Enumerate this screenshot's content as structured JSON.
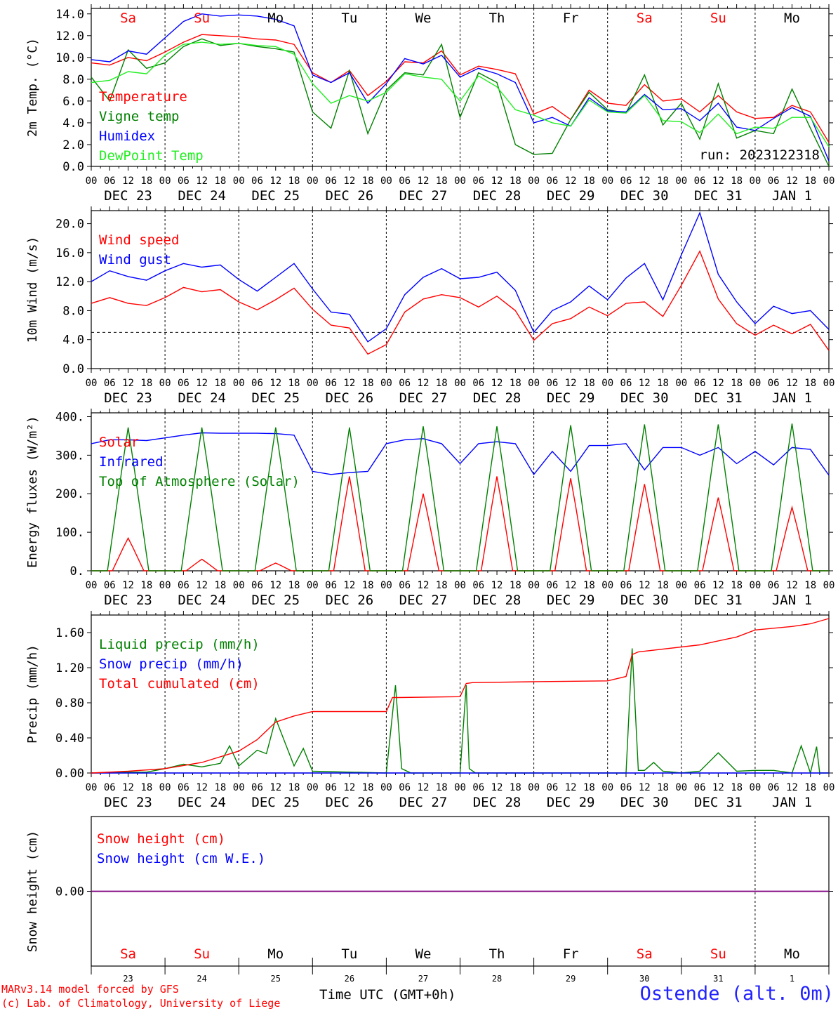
{
  "run_label": "run: 2023122318",
  "day_names": [
    "Sa",
    "Su",
    "Mo",
    "Tu",
    "We",
    "Th",
    "Fr",
    "Sa",
    "Su",
    "Mo"
  ],
  "weekend_flags": [
    true,
    true,
    false,
    false,
    false,
    false,
    false,
    true,
    true,
    false
  ],
  "date_labels": [
    "DEC 23",
    "DEC 24",
    "DEC 25",
    "DEC 26",
    "DEC 27",
    "DEC 28",
    "DEC 29",
    "DEC 30",
    "DEC 31",
    "JAN  1"
  ],
  "day_numbers": [
    "23",
    "24",
    "25",
    "26",
    "27",
    "28",
    "29",
    "30",
    "31",
    "1"
  ],
  "hour_labels": [
    "00",
    "06",
    "12",
    "18"
  ],
  "footer": {
    "credit_line1": "MARv3.14 model forced by GFS",
    "credit_line2": "(c) Lab. of Climatology, University of Liege",
    "time_axis": "Time UTC (GMT+0h)",
    "station": "Ostende (alt. 0m)"
  },
  "colors": {
    "red": "#ff0000",
    "darkgreen": "#008000",
    "blue": "#0000ff",
    "lightgreen": "#22ee22",
    "purple": "#800080"
  },
  "chart_data": [
    {
      "type": "line",
      "ylabel": "2m Temp. (°C)",
      "ylim": [
        0,
        14.5
      ],
      "yticks": [
        "0.0",
        "2.0",
        "4.0",
        "6.0",
        "8.0",
        "10.0",
        "12.0",
        "14.0"
      ],
      "ytick_values": [
        0,
        2,
        4,
        6,
        8,
        10,
        12,
        14
      ],
      "x_unit": "hours since DEC 23 00 UTC",
      "series": [
        {
          "name": "Temperature",
          "color": "red",
          "x": [
            0,
            6,
            12,
            18,
            24,
            30,
            36,
            42,
            48,
            54,
            60,
            66,
            72,
            78,
            84,
            90,
            96,
            102,
            108,
            114,
            120,
            126,
            132,
            138,
            144,
            150,
            156,
            162,
            168,
            174,
            180,
            186,
            192,
            198,
            204,
            210,
            216,
            222,
            228,
            234,
            240
          ],
          "y": [
            9.5,
            9.3,
            10.0,
            9.7,
            10.5,
            11.4,
            12.1,
            12.0,
            11.9,
            11.7,
            11.6,
            11.2,
            8.6,
            7.7,
            8.8,
            6.5,
            7.8,
            9.6,
            9.5,
            10.6,
            8.4,
            9.2,
            8.9,
            8.5,
            4.8,
            5.5,
            4.3,
            7.0,
            5.8,
            5.6,
            7.5,
            6.0,
            6.2,
            5.0,
            6.5,
            5.0,
            4.4,
            4.5,
            5.6,
            5.0,
            2.2
          ]
        },
        {
          "name": "Vigne temp",
          "color": "darkgreen",
          "x": [
            0,
            6,
            12,
            18,
            24,
            30,
            36,
            42,
            48,
            54,
            60,
            66,
            72,
            78,
            84,
            90,
            96,
            102,
            108,
            114,
            120,
            126,
            132,
            138,
            144,
            150,
            156,
            162,
            168,
            174,
            180,
            186,
            192,
            198,
            204,
            210,
            216,
            222,
            228,
            234,
            240
          ],
          "y": [
            8.2,
            6.0,
            10.7,
            9.0,
            9.5,
            11.0,
            11.7,
            11.1,
            11.3,
            11.0,
            10.8,
            10.5,
            5.0,
            3.5,
            8.8,
            3.0,
            7.0,
            8.6,
            8.4,
            11.2,
            4.5,
            8.6,
            7.7,
            2.0,
            1.1,
            1.2,
            4.3,
            6.8,
            5.2,
            4.9,
            8.4,
            3.8,
            5.8,
            2.5,
            7.6,
            2.6,
            3.3,
            3.0,
            7.1,
            3.5,
            0.0
          ]
        },
        {
          "name": "Humidex",
          "color": "blue",
          "x": [
            0,
            6,
            12,
            18,
            24,
            30,
            36,
            42,
            48,
            54,
            60,
            66,
            72,
            78,
            84,
            90,
            96,
            102,
            108,
            114,
            120,
            126,
            132,
            138,
            144,
            150,
            156,
            162,
            168,
            174,
            180,
            186,
            192,
            198,
            204,
            210,
            216,
            222,
            228,
            234,
            240
          ],
          "y": [
            9.8,
            9.6,
            10.6,
            10.3,
            11.8,
            13.3,
            14.0,
            13.8,
            13.9,
            13.8,
            13.5,
            12.9,
            8.4,
            7.7,
            8.6,
            5.8,
            7.6,
            9.9,
            9.4,
            10.2,
            8.2,
            9.0,
            8.5,
            7.7,
            4.0,
            4.5,
            3.7,
            6.3,
            5.1,
            5.0,
            6.6,
            5.2,
            5.3,
            4.2,
            5.8,
            3.6,
            3.3,
            4.4,
            5.4,
            4.6,
            0.5
          ]
        },
        {
          "name": "DewPoint Temp",
          "color": "lightgreen",
          "x": [
            0,
            6,
            12,
            18,
            24,
            30,
            36,
            42,
            48,
            54,
            60,
            66,
            72,
            78,
            84,
            90,
            96,
            102,
            108,
            114,
            120,
            126,
            132,
            138,
            144,
            150,
            156,
            162,
            168,
            174,
            180,
            186,
            192,
            198,
            204,
            210,
            216,
            222,
            228,
            234,
            240
          ],
          "y": [
            7.7,
            7.9,
            8.7,
            8.5,
            10.2,
            11.2,
            11.4,
            11.2,
            11.3,
            11.1,
            11.0,
            10.3,
            7.6,
            5.8,
            6.5,
            6.0,
            6.8,
            8.5,
            8.2,
            8.0,
            6.0,
            8.3,
            7.3,
            5.2,
            4.7,
            4.0,
            3.7,
            6.1,
            5.0,
            4.9,
            6.5,
            4.2,
            4.1,
            3.1,
            4.8,
            3.0,
            3.6,
            3.5,
            4.5,
            4.5,
            1.8
          ]
        }
      ]
    },
    {
      "type": "line",
      "ylabel": "10m Wind (m/s)",
      "ylim": [
        0,
        21.8
      ],
      "yticks": [
        "0.0",
        "4.0",
        "8.0",
        "12.0",
        "16.0",
        "20.0"
      ],
      "ytick_values": [
        0,
        4,
        8,
        12,
        16,
        20
      ],
      "reference_line": 5,
      "series": [
        {
          "name": "Wind speed",
          "color": "red",
          "x": [
            0,
            6,
            12,
            18,
            24,
            30,
            36,
            42,
            48,
            54,
            60,
            66,
            72,
            78,
            84,
            90,
            96,
            102,
            108,
            114,
            120,
            126,
            132,
            138,
            144,
            150,
            156,
            162,
            168,
            174,
            180,
            186,
            192,
            198,
            204,
            210,
            216,
            222,
            228,
            234,
            240
          ],
          "y": [
            9.0,
            9.8,
            9.0,
            8.7,
            9.8,
            11.2,
            10.6,
            10.9,
            9.2,
            8.1,
            9.5,
            11.1,
            8.2,
            6.0,
            5.6,
            2.0,
            3.3,
            7.8,
            9.6,
            10.2,
            9.8,
            8.5,
            10.0,
            8.0,
            3.9,
            6.2,
            6.9,
            8.5,
            7.3,
            9.0,
            9.2,
            7.2,
            11.5,
            16.2,
            9.6,
            6.2,
            4.6,
            6.0,
            4.8,
            6.1,
            2.5
          ]
        },
        {
          "name": "Wind gust",
          "color": "blue",
          "x": [
            0,
            6,
            12,
            18,
            24,
            30,
            36,
            42,
            48,
            54,
            60,
            66,
            72,
            78,
            84,
            90,
            96,
            102,
            108,
            114,
            120,
            126,
            132,
            138,
            144,
            150,
            156,
            162,
            168,
            174,
            180,
            186,
            192,
            198,
            204,
            210,
            216,
            222,
            228,
            234,
            240
          ],
          "y": [
            12.0,
            13.5,
            12.7,
            12.2,
            13.5,
            14.5,
            14.0,
            14.3,
            12.3,
            10.7,
            12.6,
            14.5,
            11.0,
            7.8,
            7.5,
            3.7,
            5.5,
            10.2,
            12.6,
            13.8,
            12.4,
            12.6,
            13.3,
            10.8,
            5.0,
            8.0,
            9.2,
            11.4,
            9.5,
            12.5,
            14.5,
            9.5,
            15.7,
            21.5,
            13.0,
            9.2,
            6.2,
            8.6,
            7.6,
            8.0,
            5.4
          ]
        }
      ]
    },
    {
      "type": "line",
      "ylabel": "Energy fluxes (W/m²)",
      "ylim": [
        0,
        410
      ],
      "yticks": [
        "0.",
        "100.",
        "200.",
        "300.",
        "400."
      ],
      "ytick_values": [
        0,
        100,
        200,
        300,
        400
      ],
      "series": [
        {
          "name": "Solar",
          "color": "red",
          "peaks": [
            85,
            30,
            20,
            245,
            200,
            245,
            240,
            225,
            190,
            165
          ]
        },
        {
          "name": "Infrared",
          "color": "blue",
          "x": [
            0,
            6,
            12,
            18,
            24,
            30,
            36,
            42,
            48,
            54,
            60,
            66,
            72,
            78,
            84,
            90,
            96,
            102,
            108,
            114,
            120,
            126,
            132,
            138,
            144,
            150,
            156,
            162,
            168,
            174,
            180,
            186,
            192,
            198,
            204,
            210,
            216,
            222,
            228,
            234,
            240
          ],
          "y": [
            330,
            340,
            340,
            338,
            345,
            352,
            358,
            357,
            357,
            357,
            356,
            352,
            258,
            250,
            255,
            258,
            330,
            340,
            343,
            330,
            278,
            330,
            335,
            330,
            250,
            310,
            258,
            325,
            325,
            330,
            262,
            320,
            320,
            300,
            320,
            278,
            310,
            275,
            320,
            315,
            248
          ]
        },
        {
          "name": "Top of Atmosphere (Solar)",
          "color": "darkgreen",
          "peaks": [
            372,
            372,
            372,
            372,
            375,
            375,
            378,
            380,
            380,
            382
          ]
        }
      ]
    },
    {
      "type": "line",
      "ylabel": "Precip (mm/h)",
      "ylim": [
        0,
        1.8
      ],
      "yticks": [
        "0.00",
        "0.40",
        "0.80",
        "1.20",
        "1.60"
      ],
      "ytick_values": [
        0,
        0.4,
        0.8,
        1.2,
        1.6
      ],
      "series": [
        {
          "name": "Liquid precip (mm/h)",
          "color": "darkgreen",
          "x": [
            0,
            12,
            18,
            24,
            30,
            36,
            42,
            45,
            48,
            54,
            57,
            60,
            66,
            69,
            72,
            96,
            99,
            101,
            104,
            120,
            122,
            123,
            125,
            174,
            176,
            178,
            180,
            183,
            186,
            192,
            198,
            204,
            210,
            216,
            222,
            228,
            231,
            234,
            236,
            237,
            240
          ],
          "y": [
            0.0,
            0.01,
            0.01,
            0.05,
            0.1,
            0.07,
            0.11,
            0.31,
            0.08,
            0.26,
            0.22,
            0.62,
            0.08,
            0.28,
            0.02,
            0.0,
            1.0,
            0.05,
            0.0,
            0.0,
            1.0,
            0.05,
            0.0,
            0.0,
            1.42,
            0.03,
            0.03,
            0.12,
            0.02,
            0.0,
            0.02,
            0.23,
            0.02,
            0.03,
            0.03,
            0.0,
            0.31,
            0.0,
            0.3,
            0.0,
            0.0
          ]
        },
        {
          "name": "Snow precip (mm/h)",
          "color": "blue",
          "x": [
            0,
            240
          ],
          "y": [
            0.0,
            0.0
          ]
        },
        {
          "name": "Total cumulated (cm)",
          "color": "red",
          "x": [
            0,
            12,
            24,
            36,
            48,
            54,
            60,
            66,
            72,
            84,
            96,
            98,
            100,
            120,
            122,
            124,
            144,
            168,
            174,
            176,
            178,
            198,
            210,
            216,
            228,
            234,
            240
          ],
          "y": [
            0.0,
            0.02,
            0.05,
            0.12,
            0.25,
            0.38,
            0.58,
            0.65,
            0.7,
            0.7,
            0.7,
            0.86,
            0.86,
            0.87,
            1.02,
            1.03,
            1.04,
            1.05,
            1.1,
            1.35,
            1.38,
            1.46,
            1.55,
            1.63,
            1.67,
            1.7,
            1.76
          ]
        }
      ]
    },
    {
      "type": "line",
      "ylabel": "Snow height (cm)",
      "yticks": [
        "0.00"
      ],
      "ytick_values": [
        0
      ],
      "series": [
        {
          "name": "Snow height (cm)",
          "color": "red",
          "x": [
            0,
            240
          ],
          "y": [
            0,
            0
          ]
        },
        {
          "name": "Snow height (cm W.E.)",
          "color": "blue",
          "x": [
            0,
            240
          ],
          "y": [
            0,
            0
          ]
        }
      ]
    }
  ]
}
